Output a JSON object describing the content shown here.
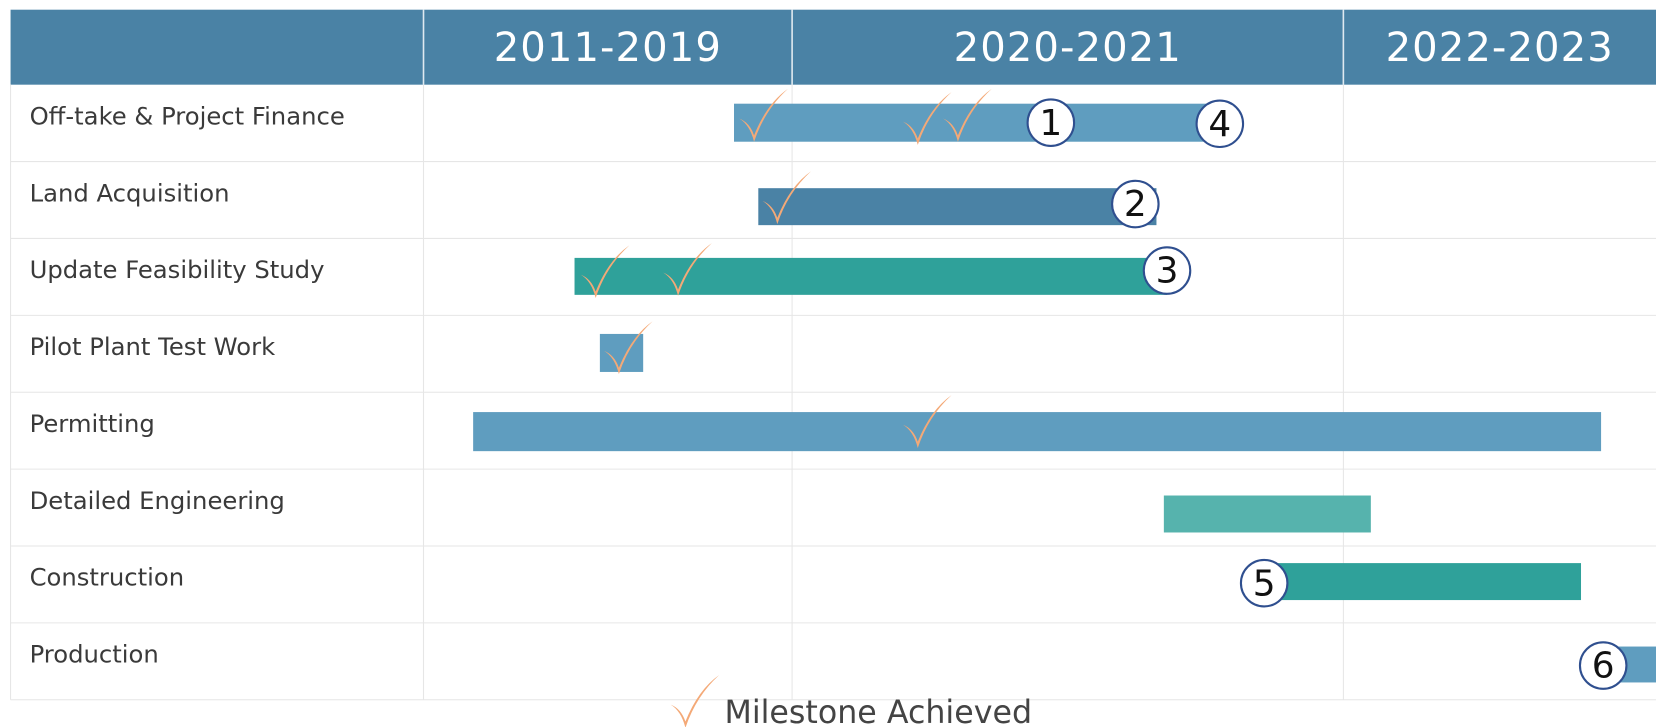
{
  "header": {
    "periods": [
      "2011-2019",
      "2020-2021",
      "2022-2023"
    ]
  },
  "rows": [
    "Off-take & Project Finance",
    "Land Acquisition",
    "Update Feasibility Study",
    "Pilot Plant Test Work",
    "Permitting",
    "Detailed Engineering",
    "Construction",
    "Production"
  ],
  "milestones": [
    "1",
    "2",
    "3",
    "4",
    "5",
    "6"
  ],
  "legend": {
    "label": "Milestone Achieved"
  }
}
